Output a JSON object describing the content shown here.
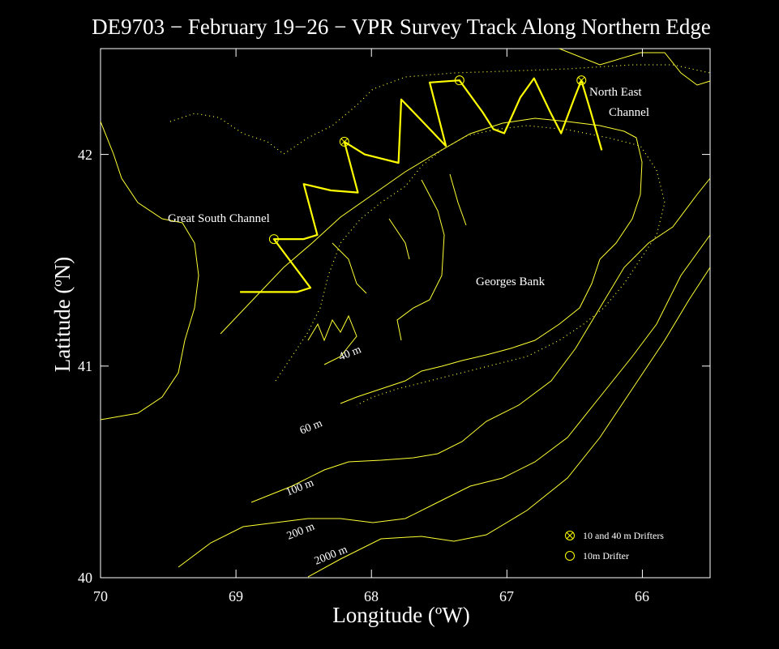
{
  "title": "DE9703 − February 19−26 − VPR Survey Track Along Northern Edge",
  "axes": {
    "xlabel": "Longitude (ºW)",
    "ylabel": "Latitude (ºN)",
    "xlim": [
      70,
      65.5
    ],
    "ylim": [
      40,
      42.5
    ],
    "xticks": [
      "70",
      "69",
      "68",
      "67",
      "66"
    ],
    "yticks": [
      "40",
      "41",
      "42"
    ]
  },
  "labels": {
    "great_south_channel": "Great South Channel",
    "georges_bank": "Georges Bank",
    "north_east_line1": "North East",
    "north_east_line2": "Channel"
  },
  "contours": {
    "c40": "40 m",
    "c60": "60 m",
    "c100": "100 m",
    "c200": "200 m",
    "c2000": "2000 m"
  },
  "legend": {
    "drifter_10_40": "10 and 40 m Drifters",
    "drifter_10": "10m Drifter"
  },
  "colors": {
    "track": "#ffff00",
    "contour": "#ffff33",
    "text": "#ffffff",
    "background": "#000000"
  },
  "track": [
    [
      68.97,
      41.35
    ],
    [
      68.85,
      41.35
    ],
    [
      68.7,
      41.35
    ],
    [
      68.55,
      41.35
    ],
    [
      68.45,
      41.37
    ],
    [
      68.72,
      41.6
    ],
    [
      68.5,
      41.6
    ],
    [
      68.4,
      41.62
    ],
    [
      68.5,
      41.86
    ],
    [
      68.3,
      41.83
    ],
    [
      68.1,
      41.82
    ],
    [
      68.2,
      42.06
    ],
    [
      68.05,
      42.0
    ],
    [
      67.8,
      41.96
    ],
    [
      67.78,
      42.26
    ],
    [
      67.6,
      42.14
    ],
    [
      67.45,
      42.04
    ],
    [
      67.57,
      42.34
    ],
    [
      67.35,
      42.35
    ],
    [
      67.18,
      42.2
    ],
    [
      67.1,
      42.12
    ],
    [
      67.02,
      42.1
    ],
    [
      66.9,
      42.27
    ],
    [
      66.8,
      42.36
    ],
    [
      66.68,
      42.2
    ],
    [
      66.6,
      42.1
    ],
    [
      66.5,
      42.27
    ],
    [
      66.45,
      42.35
    ],
    [
      66.38,
      42.2
    ],
    [
      66.3,
      42.02
    ]
  ],
  "drifters_10_40": [
    [
      68.2,
      42.06
    ],
    [
      66.45,
      42.35
    ]
  ],
  "drifters_10": [
    [
      68.72,
      41.6
    ],
    [
      67.35,
      42.35
    ]
  ]
}
